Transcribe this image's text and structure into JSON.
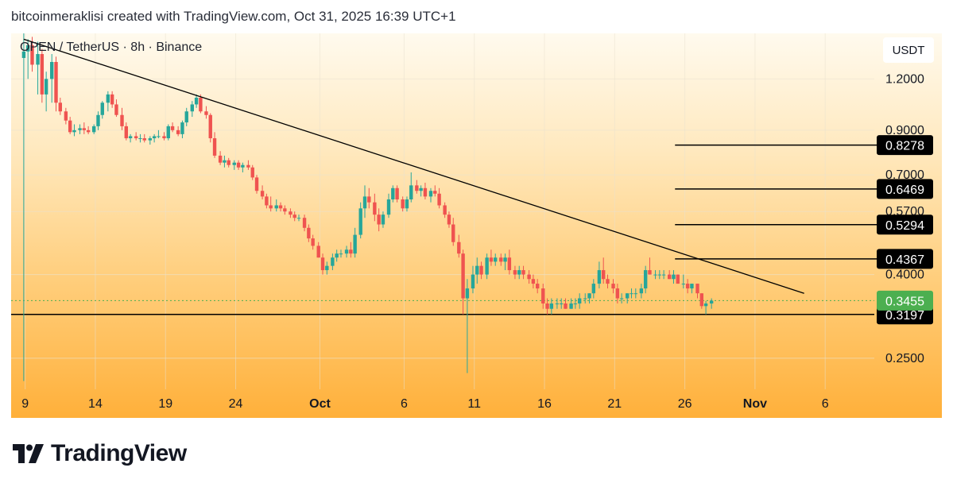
{
  "header": {
    "caption": "bitcoinmeraklisi created with TradingView.com, Oct 31, 2025 16:39 UTC+1"
  },
  "brand": {
    "name": "TradingView"
  },
  "chart_data": {
    "type": "candlestick",
    "title": "OPEN / TetherUS · 8h · Binance",
    "unit": "USDT",
    "y_scale": "log",
    "ylim": [
      0.21,
      1.55
    ],
    "yticks": [
      0.25,
      0.4,
      0.57,
      0.7,
      0.9,
      1.2
    ],
    "ytick_labels": [
      "0.2500",
      "0.4000",
      "0.5700",
      "0.7000",
      "0.9000",
      "1.2000"
    ],
    "xticks": [
      {
        "label": "9",
        "day": 9,
        "bold": false
      },
      {
        "label": "14",
        "day": 14,
        "bold": false
      },
      {
        "label": "19",
        "day": 19,
        "bold": false
      },
      {
        "label": "24",
        "day": 24,
        "bold": false
      },
      {
        "label": "Oct",
        "day": 30,
        "bold": true
      },
      {
        "label": "6",
        "day": 36,
        "bold": false
      },
      {
        "label": "11",
        "day": 41,
        "bold": false
      },
      {
        "label": "16",
        "day": 46,
        "bold": false
      },
      {
        "label": "21",
        "day": 51,
        "bold": false
      },
      {
        "label": "26",
        "day": 56,
        "bold": false
      },
      {
        "label": "Nov",
        "day": 61,
        "bold": true
      },
      {
        "label": "6",
        "day": 66,
        "bold": false
      }
    ],
    "x_range_days": [
      8.0,
      69.5
    ],
    "x_axis_note": "day = calendar day counted from 1 Sep 2025",
    "current_price": {
      "value": 0.3455,
      "label": "0.3455",
      "color": "#4caf50"
    },
    "levels": [
      {
        "value": 0.8278,
        "label": "0.8278"
      },
      {
        "value": 0.6469,
        "label": "0.6469"
      },
      {
        "value": 0.5294,
        "label": "0.5294"
      },
      {
        "value": 0.4367,
        "label": "0.4367"
      }
    ],
    "support": {
      "value": 0.3197,
      "label": "0.3197"
    },
    "trendline": {
      "start": {
        "day": 8.9,
        "price": 1.5
      },
      "end": {
        "day": 64.5,
        "price": 0.36
      }
    },
    "colors": {
      "up": "#26a69a",
      "down": "#ef5350",
      "line": "#000000",
      "grid": "#e9e2d0"
    },
    "candles": [
      [
        8.9,
        1.35,
        1.55,
        0.22,
        1.4
      ],
      [
        9.2,
        1.4,
        1.5,
        1.2,
        1.45
      ],
      [
        9.5,
        1.45,
        1.52,
        1.25,
        1.3
      ],
      [
        9.9,
        1.3,
        1.48,
        1.1,
        1.38
      ],
      [
        10.2,
        1.38,
        1.42,
        1.05,
        1.1
      ],
      [
        10.5,
        1.1,
        1.25,
        1.0,
        1.2
      ],
      [
        10.9,
        1.2,
        1.38,
        1.05,
        1.32
      ],
      [
        11.2,
        1.32,
        1.36,
        1.0,
        1.05
      ],
      [
        11.5,
        1.05,
        1.08,
        0.98,
        1.0
      ],
      [
        11.9,
        1.0,
        1.02,
        0.93,
        0.95
      ],
      [
        12.2,
        0.95,
        0.97,
        0.88,
        0.89
      ],
      [
        12.5,
        0.89,
        0.93,
        0.87,
        0.9
      ],
      [
        12.9,
        0.9,
        0.93,
        0.88,
        0.91
      ],
      [
        13.2,
        0.91,
        0.94,
        0.88,
        0.9
      ],
      [
        13.5,
        0.9,
        0.92,
        0.88,
        0.89
      ],
      [
        13.9,
        0.89,
        0.93,
        0.88,
        0.92
      ],
      [
        14.2,
        0.92,
        1.0,
        0.9,
        0.98
      ],
      [
        14.5,
        0.98,
        1.06,
        0.96,
        1.05
      ],
      [
        14.9,
        1.05,
        1.12,
        1.0,
        1.1
      ],
      [
        15.2,
        1.1,
        1.12,
        1.02,
        1.04
      ],
      [
        15.5,
        1.04,
        1.07,
        0.97,
        0.98
      ],
      [
        15.9,
        0.98,
        1.02,
        0.9,
        0.92
      ],
      [
        16.2,
        0.92,
        0.94,
        0.85,
        0.86
      ],
      [
        16.5,
        0.86,
        0.88,
        0.84,
        0.87
      ],
      [
        16.9,
        0.87,
        0.89,
        0.85,
        0.86
      ],
      [
        17.2,
        0.86,
        0.88,
        0.84,
        0.86
      ],
      [
        17.5,
        0.86,
        0.88,
        0.84,
        0.85
      ],
      [
        17.9,
        0.85,
        0.87,
        0.83,
        0.86
      ],
      [
        18.2,
        0.86,
        0.88,
        0.84,
        0.87
      ],
      [
        18.5,
        0.87,
        0.9,
        0.86,
        0.87
      ],
      [
        18.9,
        0.87,
        0.89,
        0.85,
        0.86
      ],
      [
        19.2,
        0.86,
        0.93,
        0.85,
        0.92
      ],
      [
        19.5,
        0.92,
        0.94,
        0.89,
        0.9
      ],
      [
        19.9,
        0.9,
        0.92,
        0.87,
        0.88
      ],
      [
        20.2,
        0.88,
        0.95,
        0.86,
        0.94
      ],
      [
        20.5,
        0.94,
        1.02,
        0.92,
        1.0
      ],
      [
        20.9,
        1.0,
        1.06,
        0.97,
        1.04
      ],
      [
        21.2,
        1.04,
        1.1,
        1.02,
        1.08
      ],
      [
        21.5,
        1.08,
        1.1,
        0.99,
        1.0
      ],
      [
        21.9,
        1.0,
        1.03,
        0.96,
        0.98
      ],
      [
        22.2,
        0.98,
        0.99,
        0.84,
        0.86
      ],
      [
        22.5,
        0.86,
        0.89,
        0.77,
        0.78
      ],
      [
        22.9,
        0.78,
        0.8,
        0.74,
        0.75
      ],
      [
        23.2,
        0.75,
        0.78,
        0.73,
        0.76
      ],
      [
        23.5,
        0.76,
        0.77,
        0.73,
        0.74
      ],
      [
        23.9,
        0.74,
        0.76,
        0.72,
        0.75
      ],
      [
        24.2,
        0.75,
        0.76,
        0.72,
        0.73
      ],
      [
        24.5,
        0.73,
        0.75,
        0.71,
        0.74
      ],
      [
        24.9,
        0.74,
        0.76,
        0.72,
        0.73
      ],
      [
        25.2,
        0.73,
        0.74,
        0.68,
        0.69
      ],
      [
        25.5,
        0.69,
        0.7,
        0.63,
        0.64
      ],
      [
        25.9,
        0.64,
        0.66,
        0.61,
        0.62
      ],
      [
        26.2,
        0.62,
        0.63,
        0.58,
        0.59
      ],
      [
        26.5,
        0.59,
        0.62,
        0.57,
        0.58
      ],
      [
        26.9,
        0.58,
        0.61,
        0.57,
        0.59
      ],
      [
        27.2,
        0.59,
        0.6,
        0.57,
        0.58
      ],
      [
        27.5,
        0.58,
        0.59,
        0.56,
        0.57
      ],
      [
        27.9,
        0.57,
        0.58,
        0.55,
        0.56
      ],
      [
        28.2,
        0.56,
        0.57,
        0.54,
        0.55
      ],
      [
        28.5,
        0.55,
        0.56,
        0.54,
        0.55
      ],
      [
        28.9,
        0.55,
        0.56,
        0.51,
        0.52
      ],
      [
        29.2,
        0.52,
        0.53,
        0.48,
        0.49
      ],
      [
        29.5,
        0.49,
        0.5,
        0.46,
        0.47
      ],
      [
        29.9,
        0.47,
        0.48,
        0.44,
        0.44
      ],
      [
        30.2,
        0.44,
        0.45,
        0.4,
        0.41
      ],
      [
        30.5,
        0.41,
        0.43,
        0.4,
        0.42
      ],
      [
        30.9,
        0.42,
        0.45,
        0.41,
        0.44
      ],
      [
        31.2,
        0.44,
        0.46,
        0.43,
        0.45
      ],
      [
        31.5,
        0.45,
        0.46,
        0.44,
        0.45
      ],
      [
        31.9,
        0.45,
        0.47,
        0.44,
        0.46
      ],
      [
        32.2,
        0.46,
        0.48,
        0.44,
        0.45
      ],
      [
        32.5,
        0.45,
        0.52,
        0.44,
        0.5
      ],
      [
        32.9,
        0.5,
        0.6,
        0.49,
        0.58
      ],
      [
        33.2,
        0.58,
        0.66,
        0.55,
        0.62
      ],
      [
        33.5,
        0.62,
        0.65,
        0.58,
        0.6
      ],
      [
        33.9,
        0.6,
        0.63,
        0.54,
        0.56
      ],
      [
        34.2,
        0.56,
        0.58,
        0.51,
        0.53
      ],
      [
        34.5,
        0.53,
        0.57,
        0.52,
        0.56
      ],
      [
        34.9,
        0.56,
        0.63,
        0.55,
        0.61
      ],
      [
        35.2,
        0.61,
        0.66,
        0.6,
        0.65
      ],
      [
        35.5,
        0.65,
        0.66,
        0.6,
        0.61
      ],
      [
        35.9,
        0.61,
        0.62,
        0.57,
        0.58
      ],
      [
        36.2,
        0.58,
        0.62,
        0.57,
        0.61
      ],
      [
        36.5,
        0.61,
        0.71,
        0.6,
        0.66
      ],
      [
        36.9,
        0.66,
        0.68,
        0.63,
        0.64
      ],
      [
        37.2,
        0.64,
        0.66,
        0.62,
        0.65
      ],
      [
        37.5,
        0.65,
        0.67,
        0.61,
        0.62
      ],
      [
        37.9,
        0.62,
        0.65,
        0.6,
        0.64
      ],
      [
        38.2,
        0.64,
        0.66,
        0.62,
        0.63
      ],
      [
        38.5,
        0.63,
        0.65,
        0.58,
        0.59
      ],
      [
        38.9,
        0.59,
        0.6,
        0.55,
        0.56
      ],
      [
        39.2,
        0.56,
        0.57,
        0.52,
        0.53
      ],
      [
        39.5,
        0.53,
        0.55,
        0.47,
        0.48
      ],
      [
        39.9,
        0.48,
        0.5,
        0.44,
        0.45
      ],
      [
        40.2,
        0.45,
        0.46,
        0.32,
        0.35
      ],
      [
        40.5,
        0.35,
        0.39,
        0.23,
        0.37
      ],
      [
        40.9,
        0.37,
        0.42,
        0.36,
        0.4
      ],
      [
        41.2,
        0.4,
        0.44,
        0.38,
        0.42
      ],
      [
        41.5,
        0.42,
        0.43,
        0.39,
        0.4
      ],
      [
        41.9,
        0.4,
        0.45,
        0.39,
        0.44
      ],
      [
        42.2,
        0.44,
        0.46,
        0.42,
        0.43
      ],
      [
        42.5,
        0.43,
        0.45,
        0.42,
        0.44
      ],
      [
        42.9,
        0.44,
        0.45,
        0.42,
        0.43
      ],
      [
        43.2,
        0.43,
        0.45,
        0.41,
        0.44
      ],
      [
        43.5,
        0.44,
        0.46,
        0.4,
        0.41
      ],
      [
        43.9,
        0.41,
        0.42,
        0.39,
        0.4
      ],
      [
        44.2,
        0.4,
        0.42,
        0.39,
        0.41
      ],
      [
        44.5,
        0.41,
        0.42,
        0.39,
        0.4
      ],
      [
        44.9,
        0.4,
        0.41,
        0.38,
        0.39
      ],
      [
        45.2,
        0.39,
        0.4,
        0.37,
        0.38
      ],
      [
        45.5,
        0.38,
        0.39,
        0.36,
        0.37
      ],
      [
        45.9,
        0.37,
        0.38,
        0.33,
        0.34
      ],
      [
        46.2,
        0.34,
        0.35,
        0.32,
        0.33
      ],
      [
        46.5,
        0.33,
        0.35,
        0.32,
        0.34
      ],
      [
        46.9,
        0.34,
        0.35,
        0.33,
        0.34
      ],
      [
        47.2,
        0.34,
        0.35,
        0.33,
        0.34
      ],
      [
        47.5,
        0.34,
        0.35,
        0.33,
        0.33
      ],
      [
        47.9,
        0.33,
        0.35,
        0.33,
        0.34
      ],
      [
        48.2,
        0.34,
        0.35,
        0.33,
        0.34
      ],
      [
        48.5,
        0.34,
        0.36,
        0.33,
        0.35
      ],
      [
        48.9,
        0.35,
        0.36,
        0.34,
        0.35
      ],
      [
        49.2,
        0.35,
        0.36,
        0.34,
        0.36
      ],
      [
        49.5,
        0.36,
        0.39,
        0.35,
        0.38
      ],
      [
        49.9,
        0.38,
        0.43,
        0.37,
        0.41
      ],
      [
        50.2,
        0.41,
        0.44,
        0.38,
        0.39
      ],
      [
        50.5,
        0.39,
        0.4,
        0.37,
        0.38
      ],
      [
        50.9,
        0.38,
        0.39,
        0.36,
        0.37
      ],
      [
        51.2,
        0.37,
        0.38,
        0.34,
        0.35
      ],
      [
        51.5,
        0.35,
        0.36,
        0.34,
        0.35
      ],
      [
        51.9,
        0.35,
        0.36,
        0.34,
        0.36
      ],
      [
        52.2,
        0.36,
        0.37,
        0.35,
        0.36
      ],
      [
        52.5,
        0.36,
        0.37,
        0.35,
        0.36
      ],
      [
        52.9,
        0.36,
        0.38,
        0.35,
        0.37
      ],
      [
        53.2,
        0.37,
        0.42,
        0.36,
        0.41
      ],
      [
        53.5,
        0.41,
        0.44,
        0.4,
        0.4
      ],
      [
        53.9,
        0.4,
        0.41,
        0.39,
        0.4
      ],
      [
        54.2,
        0.4,
        0.41,
        0.39,
        0.4
      ],
      [
        54.5,
        0.4,
        0.41,
        0.39,
        0.4
      ],
      [
        54.9,
        0.4,
        0.41,
        0.39,
        0.39
      ],
      [
        55.2,
        0.39,
        0.41,
        0.38,
        0.4
      ],
      [
        55.5,
        0.4,
        0.4,
        0.38,
        0.38
      ],
      [
        55.9,
        0.38,
        0.4,
        0.37,
        0.38
      ],
      [
        56.2,
        0.38,
        0.39,
        0.36,
        0.37
      ],
      [
        56.5,
        0.37,
        0.38,
        0.36,
        0.38
      ],
      [
        56.9,
        0.38,
        0.38,
        0.35,
        0.36
      ],
      [
        57.2,
        0.36,
        0.36,
        0.33,
        0.335
      ],
      [
        57.5,
        0.335,
        0.345,
        0.32,
        0.34
      ],
      [
        57.9,
        0.34,
        0.35,
        0.33,
        0.3455
      ]
    ]
  }
}
